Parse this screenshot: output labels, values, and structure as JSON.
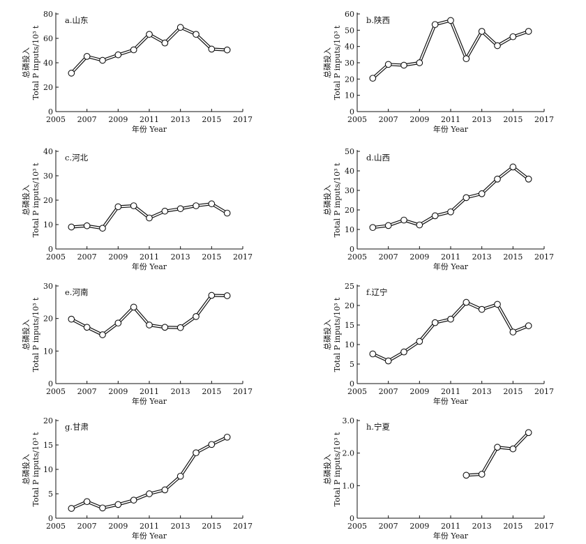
{
  "chart_data": [
    {
      "type": "line",
      "panel_label": "a.山东",
      "xlabel": "年份 Year",
      "ylabel": [
        "总磷投入",
        "Total P inputs/10³ t"
      ],
      "xlim": [
        2005,
        2017
      ],
      "xticks": [
        2005,
        2007,
        2009,
        2011,
        2013,
        2015,
        2017
      ],
      "ylim": [
        0,
        80
      ],
      "yticks": [
        0,
        20,
        40,
        60,
        80
      ],
      "y_tick_labels": [
        "0",
        "20",
        "40",
        "60",
        "80"
      ],
      "x": [
        2006,
        2007,
        2008,
        2009,
        2010,
        2011,
        2012,
        2013,
        2014,
        2015,
        2016
      ],
      "values": [
        31.5,
        45.2,
        42.0,
        46.5,
        50.6,
        63.3,
        56.2,
        69.0,
        63.3,
        51.2,
        50.5
      ]
    },
    {
      "type": "line",
      "panel_label": "b.陕西",
      "xlabel": "年份 Year",
      "ylabel": [
        "总磷投入",
        "Total P inputs/10³ t"
      ],
      "xlim": [
        2005,
        2017
      ],
      "xticks": [
        2005,
        2007,
        2009,
        2011,
        2013,
        2015,
        2017
      ],
      "ylim": [
        0,
        60
      ],
      "yticks": [
        0,
        10,
        20,
        30,
        40,
        50,
        60
      ],
      "y_tick_labels": [
        "0",
        "10",
        "20",
        "30",
        "40",
        "50",
        "60"
      ],
      "x": [
        2006,
        2007,
        2008,
        2009,
        2010,
        2011,
        2012,
        2013,
        2014,
        2015,
        2016
      ],
      "values": [
        20.5,
        29.0,
        28.5,
        30.0,
        53.5,
        56.0,
        32.5,
        49.3,
        40.5,
        46.0,
        49.3
      ]
    },
    {
      "type": "line",
      "panel_label": "c.河北",
      "xlabel": "年份 Year",
      "ylabel": [
        "总磷投入",
        "Total P inputs/10³ t"
      ],
      "xlim": [
        2005,
        2017
      ],
      "xticks": [
        2005,
        2007,
        2009,
        2011,
        2013,
        2015,
        2017
      ],
      "ylim": [
        0,
        40
      ],
      "yticks": [
        0,
        10,
        20,
        30,
        40
      ],
      "y_tick_labels": [
        "0",
        "10",
        "20",
        "30",
        "40"
      ],
      "x": [
        2006,
        2007,
        2008,
        2009,
        2010,
        2011,
        2012,
        2013,
        2014,
        2015,
        2016
      ],
      "values": [
        9.0,
        9.5,
        8.5,
        17.3,
        17.7,
        12.7,
        15.5,
        16.5,
        17.7,
        18.5,
        14.7
      ]
    },
    {
      "type": "line",
      "panel_label": "d.山西",
      "xlabel": "年份 Year",
      "ylabel": [
        "总磷投入",
        "Total P inputs/10³ t"
      ],
      "xlim": [
        2005,
        2017
      ],
      "xticks": [
        2005,
        2007,
        2009,
        2011,
        2013,
        2015,
        2017
      ],
      "ylim": [
        0,
        50
      ],
      "yticks": [
        0,
        10,
        20,
        30,
        40,
        50
      ],
      "y_tick_labels": [
        "0",
        "10",
        "20",
        "30",
        "40",
        "50"
      ],
      "x": [
        2006,
        2007,
        2008,
        2009,
        2010,
        2011,
        2012,
        2013,
        2014,
        2015,
        2016
      ],
      "values": [
        11.0,
        12.0,
        14.8,
        12.3,
        17.0,
        19.0,
        26.3,
        28.3,
        35.8,
        42.0,
        35.8
      ]
    },
    {
      "type": "line",
      "panel_label": "e.河南",
      "xlabel": "年份 Year",
      "ylabel": [
        "总磷投入",
        "Total P inputs/10³ t"
      ],
      "xlim": [
        2005,
        2017
      ],
      "xticks": [
        2005,
        2007,
        2009,
        2011,
        2013,
        2015,
        2017
      ],
      "ylim": [
        0,
        30
      ],
      "yticks": [
        0,
        10,
        20,
        30
      ],
      "y_tick_labels": [
        "0",
        "10",
        "20",
        "30"
      ],
      "x": [
        2006,
        2007,
        2008,
        2009,
        2010,
        2011,
        2012,
        2013,
        2014,
        2015,
        2016
      ],
      "values": [
        19.8,
        17.3,
        15.0,
        18.6,
        23.5,
        18.0,
        17.3,
        17.2,
        20.6,
        27.1,
        27.0
      ]
    },
    {
      "type": "line",
      "panel_label": "f.辽宁",
      "xlabel": "年份 Year",
      "ylabel": [
        "总磷投入",
        "Total P inputs/10³ t"
      ],
      "xlim": [
        2005,
        2017
      ],
      "xticks": [
        2005,
        2007,
        2009,
        2011,
        2013,
        2015,
        2017
      ],
      "ylim": [
        0,
        25
      ],
      "yticks": [
        0,
        5,
        10,
        15,
        20,
        25
      ],
      "y_tick_labels": [
        "0",
        "5",
        "10",
        "15",
        "20",
        "25"
      ],
      "x": [
        2006,
        2007,
        2008,
        2009,
        2010,
        2011,
        2012,
        2013,
        2014,
        2015,
        2016
      ],
      "values": [
        7.6,
        5.8,
        8.1,
        10.8,
        15.6,
        16.5,
        20.8,
        19.0,
        20.3,
        13.2,
        14.8
      ]
    },
    {
      "type": "line",
      "panel_label": "g.甘肃",
      "xlabel": "年份 Year",
      "ylabel": [
        "总磷投入",
        "Total P inputs/10³ t"
      ],
      "xlim": [
        2005,
        2017
      ],
      "xticks": [
        2005,
        2007,
        2009,
        2011,
        2013,
        2015,
        2017
      ],
      "ylim": [
        0,
        20
      ],
      "yticks": [
        0,
        5,
        10,
        15,
        20
      ],
      "y_tick_labels": [
        "0",
        "5",
        "10",
        "15",
        "20"
      ],
      "x": [
        2006,
        2007,
        2008,
        2009,
        2010,
        2011,
        2012,
        2013,
        2014,
        2015,
        2016
      ],
      "values": [
        2.0,
        3.4,
        2.1,
        2.8,
        3.7,
        5.0,
        5.8,
        8.6,
        13.4,
        15.1,
        16.6
      ]
    },
    {
      "type": "line",
      "panel_label": "h.宁夏",
      "xlabel": "年份 Year",
      "ylabel": [
        "总磷投入",
        "Total P inputs/10³ t"
      ],
      "xlim": [
        2005,
        2017
      ],
      "xticks": [
        2005,
        2007,
        2009,
        2011,
        2013,
        2015,
        2017
      ],
      "ylim": [
        0,
        3.0
      ],
      "yticks": [
        0,
        1,
        2,
        3
      ],
      "y_tick_labels": [
        "0",
        "1.0",
        "2.0",
        "3.0"
      ],
      "x": [
        2012,
        2013,
        2014,
        2015,
        2016
      ],
      "values": [
        1.32,
        1.35,
        2.18,
        2.13,
        2.63
      ]
    }
  ]
}
